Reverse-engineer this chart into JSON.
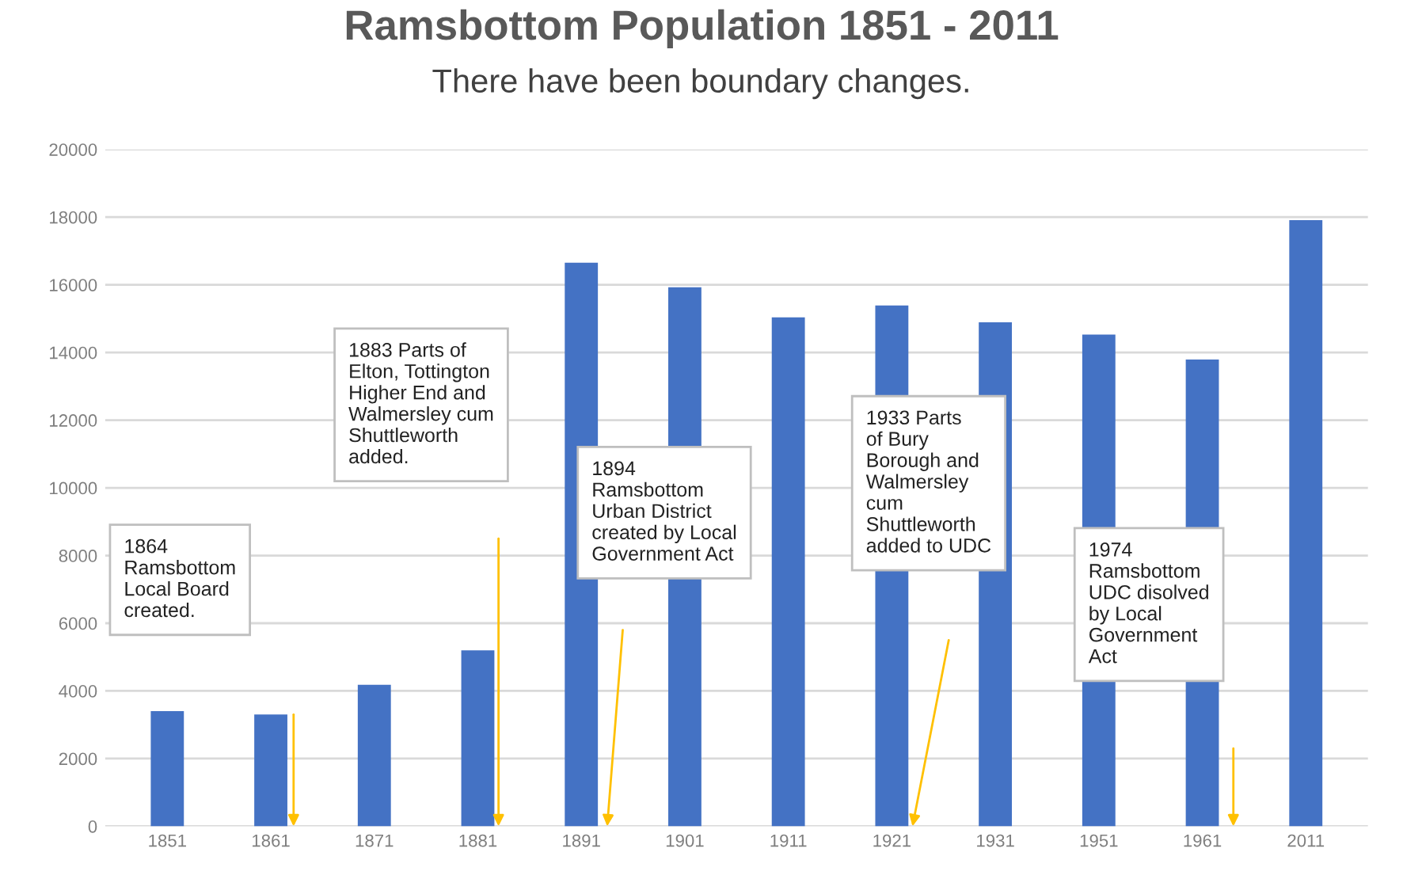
{
  "chart_data": {
    "type": "bar",
    "title": "Ramsbottom Population 1851 - 2011",
    "subtitle": "There have been boundary changes.",
    "categories": [
      "1851",
      "1861",
      "1871",
      "1881",
      "1891",
      "1901",
      "1911",
      "1921",
      "1931",
      "1951",
      "1961",
      "2011"
    ],
    "values": [
      3400,
      3300,
      4180,
      5200,
      16650,
      15930,
      15040,
      15390,
      14890,
      14530,
      13790,
      17910
    ],
    "color": "#4472c4",
    "ylim": [
      0,
      20000
    ],
    "yticks": [
      0,
      2000,
      4000,
      6000,
      8000,
      10000,
      12000,
      14000,
      16000,
      18000,
      20000
    ],
    "grid": "y",
    "annotations": [
      "1864\nRamsbottom\nLocal Board\ncreated.",
      "1883 Parts of\nElton, Tottington\nHigher End and\nWalmersley cum\nShuttleworth\nadded.",
      "1894\nRamsbottom\nUrban District\ncreated by Local\nGovernment Act",
      "1933 Parts\nof Bury\nBorough and\nWalmersley\ncum\nShuttleworth\nadded to UDC",
      "1974\nRamsbottom\nUDC disolved\nby Local\nGovernment\nAct"
    ]
  }
}
